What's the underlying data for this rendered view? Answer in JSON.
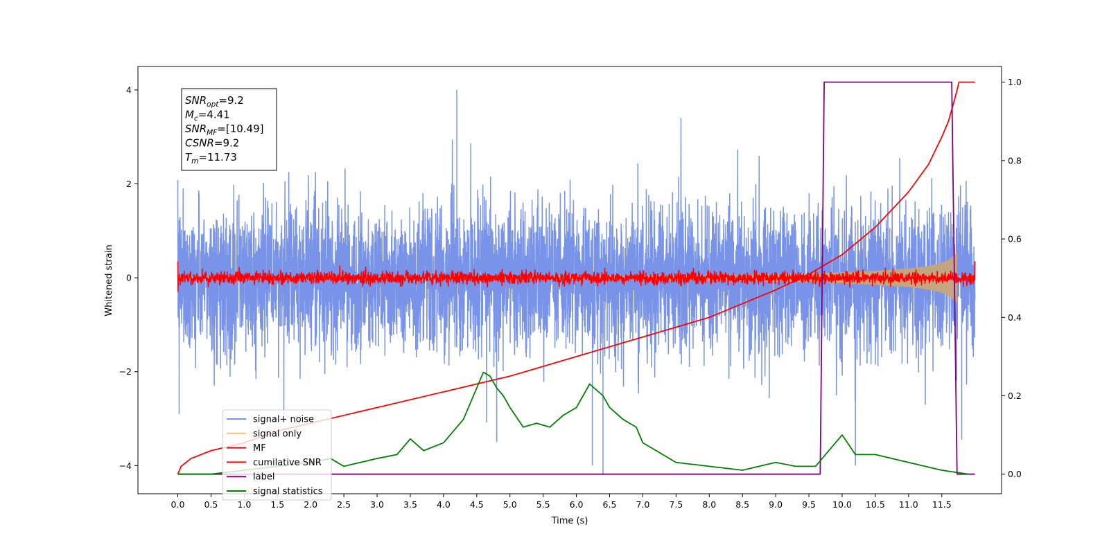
{
  "chart_data": {
    "type": "line",
    "title": "",
    "xlabel": "Time (s)",
    "ylabel": "Whitened strain",
    "ylabel_right": "",
    "xlim": [
      -0.6,
      12.4
    ],
    "ylim": [
      -4.6,
      4.5
    ],
    "ylim_right": [
      -0.05,
      1.04
    ],
    "x_ticks": [
      "0.0",
      "0.5",
      "1.0",
      "1.5",
      "2.0",
      "2.5",
      "3.0",
      "3.5",
      "4.0",
      "4.5",
      "5.0",
      "5.5",
      "6.0",
      "6.5",
      "7.0",
      "7.5",
      "8.0",
      "8.5",
      "9.0",
      "9.5",
      "10.0",
      "10.5",
      "11.0",
      "11.5"
    ],
    "y_ticks": [
      "4",
      "2",
      "0",
      "−2",
      "−4"
    ],
    "y_ticks_right": [
      "1.0",
      "0.8",
      "0.6",
      "0.4",
      "0.2",
      "0.0"
    ],
    "grid": false,
    "legend_position": "lower-left",
    "annotation": {
      "lines": [
        {
          "sym": "SNR",
          "sub": "opt",
          "val": "=9.2"
        },
        {
          "sym": "M",
          "sub": "c",
          "val": "=4.41"
        },
        {
          "sym": "SNR",
          "sub": "MF",
          "val": "=[10.49]"
        },
        {
          "sym": "CSNR",
          "sub": "",
          "val": "=9.2"
        },
        {
          "sym": "T",
          "sub": "m",
          "val": "=11.73"
        }
      ]
    },
    "series": [
      {
        "name": "signal+ noise",
        "color": "#7893e8",
        "axis": "left",
        "style": "noise",
        "t_range": [
          0,
          12.0
        ],
        "amplitude_typical": 1.3,
        "amplitude_peak": 4.0
      },
      {
        "name": "signal only",
        "color": "#f5c36b",
        "axis": "left",
        "style": "chirp",
        "t_range": [
          0,
          11.73
        ],
        "envelope": {
          "x": [
            0,
            4,
            6,
            8,
            9,
            9.5,
            10,
            10.5,
            11,
            11.3,
            11.5,
            11.6,
            11.7,
            11.73
          ],
          "y": [
            0.02,
            0.03,
            0.04,
            0.06,
            0.08,
            0.09,
            0.12,
            0.15,
            0.2,
            0.25,
            0.32,
            0.38,
            0.5,
            0.55
          ]
        }
      },
      {
        "name": "MF",
        "color": "#ff0000",
        "axis": "left",
        "style": "noise",
        "t_range": [
          0,
          12.0
        ],
        "amplitude_typical": 0.1,
        "amplitude_peak": 0.35
      },
      {
        "name": "cumilative SNR",
        "color": "#ff0000",
        "axis": "right",
        "x": [
          0,
          0.05,
          0.2,
          0.5,
          1,
          1.5,
          2,
          3,
          4,
          5,
          6,
          7,
          8,
          9,
          9.5,
          10,
          10.5,
          11,
          11.3,
          11.5,
          11.6,
          11.7,
          11.76,
          12.0
        ],
        "y": [
          0.0,
          0.02,
          0.04,
          0.06,
          0.08,
          0.11,
          0.13,
          0.17,
          0.21,
          0.25,
          0.3,
          0.35,
          0.4,
          0.47,
          0.51,
          0.56,
          0.63,
          0.72,
          0.79,
          0.86,
          0.9,
          0.96,
          1.0,
          1.0
        ]
      },
      {
        "name": "label",
        "color": "#800080",
        "axis": "right",
        "x": [
          0,
          9.67,
          9.73,
          11.65,
          11.73,
          12.0
        ],
        "y": [
          0,
          0,
          1,
          1,
          0,
          0
        ]
      },
      {
        "name": "signal statistics",
        "color": "#008000",
        "axis": "right",
        "x": [
          0,
          0.5,
          1.0,
          1.5,
          2.0,
          2.3,
          2.5,
          3.0,
          3.3,
          3.5,
          3.7,
          4.0,
          4.3,
          4.5,
          4.6,
          4.7,
          4.8,
          4.9,
          5.0,
          5.2,
          5.4,
          5.6,
          5.8,
          6.0,
          6.2,
          6.4,
          6.5,
          6.7,
          6.9,
          7.0,
          7.5,
          8.0,
          8.5,
          9.0,
          9.3,
          9.6,
          9.7,
          9.8,
          10.0,
          10.2,
          10.5,
          11.0,
          11.5,
          11.9
        ],
        "y": [
          0.0,
          0.0,
          0.01,
          0.02,
          0.03,
          0.04,
          0.02,
          0.04,
          0.05,
          0.09,
          0.06,
          0.08,
          0.14,
          0.22,
          0.26,
          0.25,
          0.22,
          0.2,
          0.17,
          0.12,
          0.13,
          0.12,
          0.15,
          0.17,
          0.23,
          0.2,
          0.17,
          0.14,
          0.12,
          0.08,
          0.03,
          0.02,
          0.01,
          0.03,
          0.02,
          0.02,
          0.04,
          0.06,
          0.1,
          0.05,
          0.05,
          0.03,
          0.01,
          0.0
        ]
      }
    ]
  }
}
